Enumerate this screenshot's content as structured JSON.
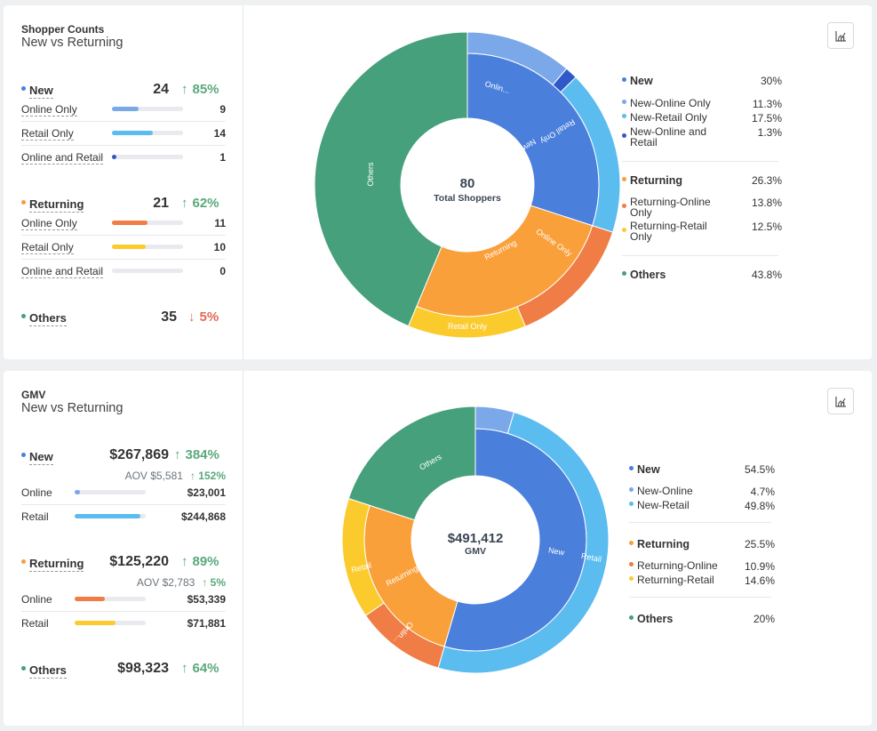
{
  "shopper": {
    "title": "Shopper Counts",
    "subtitle": "New vs Returning",
    "groups": {
      "new": {
        "label": "New",
        "value": "24",
        "change": "85%",
        "direction": "up",
        "subs": [
          {
            "label": "Online Only",
            "value": "9",
            "fill": 0.38
          },
          {
            "label": "Retail Only",
            "value": "14",
            "fill": 0.58
          },
          {
            "label": "Online and Retail",
            "value": "1",
            "fill": 0.05
          }
        ]
      },
      "returning": {
        "label": "Returning",
        "value": "21",
        "change": "62%",
        "direction": "up",
        "subs": [
          {
            "label": "Online Only",
            "value": "11",
            "fill": 0.5
          },
          {
            "label": "Retail Only",
            "value": "10",
            "fill": 0.48
          },
          {
            "label": "Online and Retail",
            "value": "0",
            "fill": 0
          }
        ]
      },
      "others": {
        "label": "Others",
        "value": "35",
        "change": "5%",
        "direction": "down"
      }
    },
    "center_value": "80",
    "center_label": "Total Shoppers",
    "segment_labels": {
      "online_only_new": "Onlin...",
      "new": "New",
      "retail_only_new": "Retail Only",
      "returning": "Returning",
      "online_only_ret": "Online Only",
      "retail_only_ret": "Retail Only",
      "others": "Others"
    },
    "legend": {
      "new": {
        "label": "New",
        "pct": "30%"
      },
      "new_subs": [
        {
          "label": "New-Online Only",
          "pct": "11.3%"
        },
        {
          "label": "New-Retail Only",
          "pct": "17.5%"
        },
        {
          "label_l1": "New-Online and",
          "label_l2": "Retail",
          "pct": "1.3%"
        }
      ],
      "returning": {
        "label": "Returning",
        "pct": "26.3%"
      },
      "returning_subs": [
        {
          "label_l1": "Returning-Online",
          "label_l2": "Only",
          "pct": "13.8%"
        },
        {
          "label_l1": "Returning-Retail",
          "label_l2": "Only",
          "pct": "12.5%"
        }
      ],
      "others": {
        "label": "Others",
        "pct": "43.8%"
      }
    }
  },
  "gmv": {
    "title": "GMV",
    "subtitle": "New vs Returning",
    "groups": {
      "new": {
        "label": "New",
        "value": "$267,869",
        "change": "384%",
        "direction": "up",
        "aov": "AOV $5,581",
        "aov_change": "152%",
        "subs": [
          {
            "label": "Online",
            "value": "$23,001",
            "fill": 0.08
          },
          {
            "label": "Retail",
            "value": "$244,868",
            "fill": 0.92
          }
        ]
      },
      "returning": {
        "label": "Returning",
        "value": "$125,220",
        "change": "89%",
        "direction": "up",
        "aov": "AOV $2,783",
        "aov_change": "5%",
        "subs": [
          {
            "label": "Online",
            "value": "$53,339",
            "fill": 0.43
          },
          {
            "label": "Retail",
            "value": "$71,881",
            "fill": 0.57
          }
        ]
      },
      "others": {
        "label": "Others",
        "value": "$98,323",
        "change": "64%",
        "direction": "up"
      }
    },
    "center_value": "$491,412",
    "center_label": "GMV",
    "segment_labels": {
      "new": "New",
      "retail_new": "Retail",
      "returning": "Returning",
      "online_ret": "Onlin...",
      "retail_ret": "Retail",
      "others": "Others"
    },
    "legend": {
      "new": {
        "label": "New",
        "pct": "54.5%"
      },
      "new_subs": [
        {
          "label": "New-Online",
          "pct": "4.7%"
        },
        {
          "label": "New-Retail",
          "pct": "49.8%"
        }
      ],
      "returning": {
        "label": "Returning",
        "pct": "25.5%"
      },
      "returning_subs": [
        {
          "label": "Returning-Online",
          "pct": "10.9%"
        },
        {
          "label": "Returning-Retail",
          "pct": "14.6%"
        }
      ],
      "others": {
        "label": "Others",
        "pct": "20%"
      }
    }
  },
  "colors": {
    "new": "#4a7fdc",
    "new_online": "#7ba8e8",
    "new_retail": "#5bbcf0",
    "new_both": "#3058c8",
    "returning": "#f9a03a",
    "ret_online": "#ef7d45",
    "ret_retail": "#fbcb2e",
    "others": "#46a07c",
    "up": "#5aa97c",
    "down": "#e26a56"
  },
  "icons": {
    "chart_button": "chart-icon"
  }
}
